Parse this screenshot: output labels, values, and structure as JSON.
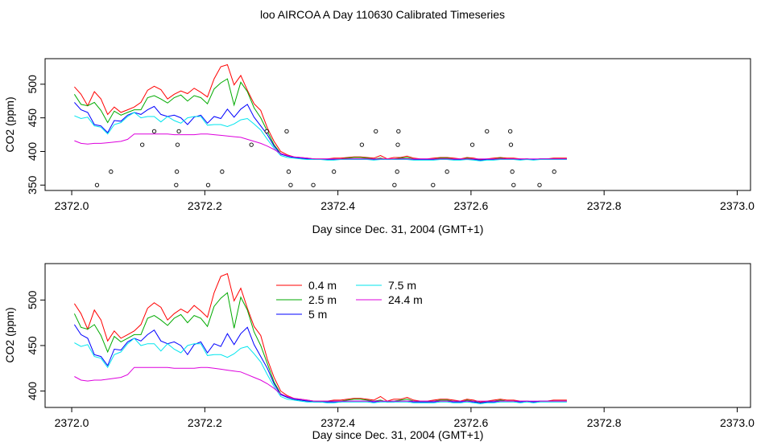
{
  "page": {
    "title": "loo AIRCOA A  Day 110630  Calibrated Timeseries"
  },
  "chart_data": [
    {
      "type": "line",
      "xlabel": "Day since Dec. 31, 2004 (GMT+1)",
      "ylabel": "CO2 (ppm)",
      "xlim": [
        2371.96,
        2373.02
      ],
      "ylim": [
        342,
        538
      ],
      "xticks": [
        "2372.0",
        "2372.2",
        "2372.4",
        "2372.6",
        "2372.8",
        "2373.0"
      ],
      "yticks": [
        "350",
        "400",
        "450",
        "500"
      ],
      "x": [
        2372.004,
        2372.014,
        2372.024,
        2372.034,
        2372.044,
        2372.054,
        2372.064,
        2372.074,
        2372.084,
        2372.094,
        2372.104,
        2372.114,
        2372.124,
        2372.134,
        2372.144,
        2372.154,
        2372.164,
        2372.174,
        2372.184,
        2372.194,
        2372.204,
        2372.214,
        2372.224,
        2372.234,
        2372.244,
        2372.254,
        2372.264,
        2372.274,
        2372.284,
        2372.294,
        2372.304,
        2372.314,
        2372.324,
        2372.334,
        2372.344,
        2372.354,
        2372.364,
        2372.374,
        2372.384,
        2372.394,
        2372.404,
        2372.414,
        2372.424,
        2372.434,
        2372.444,
        2372.454,
        2372.464,
        2372.474,
        2372.484,
        2372.494,
        2372.504,
        2372.514,
        2372.524,
        2372.534,
        2372.544,
        2372.554,
        2372.564,
        2372.574,
        2372.584,
        2372.594,
        2372.604,
        2372.614,
        2372.624,
        2372.634,
        2372.644,
        2372.654,
        2372.664,
        2372.674,
        2372.684,
        2372.694,
        2372.704,
        2372.714,
        2372.724,
        2372.734,
        2372.744
      ],
      "series": [
        {
          "name": "0.4 m",
          "color": "#ff0000",
          "values": [
            496,
            485,
            468,
            489,
            478,
            455,
            466,
            458,
            462,
            466,
            473,
            491,
            497,
            492,
            478,
            485,
            490,
            486,
            494,
            488,
            481,
            508,
            526,
            529,
            499,
            513,
            491,
            471,
            461,
            435,
            415,
            400,
            395,
            392,
            391,
            390,
            389,
            389,
            389,
            390,
            390,
            391,
            392,
            392,
            391,
            390,
            394,
            389,
            391,
            391,
            393,
            390,
            389,
            389,
            390,
            391,
            391,
            390,
            389,
            391,
            390,
            388,
            389,
            390,
            391,
            390,
            390,
            389,
            389,
            388,
            389,
            389,
            390,
            390,
            390
          ]
        },
        {
          "name": "2.5 m",
          "color": "#00aa00",
          "values": [
            485,
            470,
            468,
            473,
            461,
            443,
            460,
            454,
            458,
            462,
            462,
            480,
            483,
            478,
            472,
            480,
            484,
            475,
            483,
            480,
            471,
            493,
            502,
            508,
            469,
            503,
            489,
            465,
            450,
            430,
            410,
            397,
            393,
            391,
            390,
            389,
            389,
            388,
            388,
            389,
            389,
            390,
            391,
            391,
            390,
            389,
            390,
            388,
            389,
            390,
            391,
            389,
            388,
            388,
            389,
            390,
            390,
            389,
            388,
            390,
            389,
            387,
            388,
            389,
            390,
            389,
            389,
            388,
            389,
            388,
            389,
            389,
            389,
            389,
            389
          ]
        },
        {
          "name": "5 m",
          "color": "#0000ff",
          "values": [
            473,
            462,
            458,
            440,
            438,
            428,
            446,
            445,
            454,
            458,
            455,
            462,
            467,
            455,
            452,
            454,
            450,
            440,
            451,
            454,
            442,
            452,
            449,
            463,
            451,
            463,
            470,
            451,
            438,
            425,
            408,
            396,
            393,
            391,
            390,
            389,
            388,
            388,
            388,
            388,
            388,
            389,
            389,
            389,
            389,
            388,
            389,
            388,
            388,
            389,
            389,
            388,
            388,
            388,
            388,
            389,
            389,
            388,
            388,
            389,
            388,
            387,
            388,
            388,
            389,
            389,
            389,
            388,
            389,
            388,
            389,
            389,
            389,
            389,
            389
          ]
        },
        {
          "name": "7.5 m",
          "color": "#00e5ee",
          "values": [
            453,
            449,
            451,
            438,
            436,
            426,
            440,
            443,
            452,
            458,
            450,
            452,
            452,
            444,
            452,
            446,
            442,
            450,
            452,
            452,
            439,
            440,
            440,
            437,
            441,
            447,
            449,
            441,
            432,
            418,
            405,
            394,
            391,
            390,
            389,
            388,
            388,
            388,
            387,
            387,
            388,
            388,
            388,
            388,
            388,
            387,
            388,
            388,
            388,
            388,
            388,
            387,
            387,
            387,
            387,
            388,
            388,
            387,
            387,
            388,
            387,
            386,
            387,
            387,
            388,
            388,
            388,
            387,
            388,
            387,
            388,
            388,
            388,
            388,
            388
          ]
        },
        {
          "name": "24.4 m",
          "color": "#dd00dd",
          "values": [
            416,
            412,
            411,
            412,
            412,
            413,
            414,
            415,
            418,
            426,
            426,
            426,
            426,
            426,
            426,
            425,
            425,
            425,
            425,
            426,
            426,
            425,
            424,
            423,
            422,
            421,
            418,
            415,
            412,
            408,
            403,
            397,
            394,
            392,
            391,
            390,
            389,
            389,
            389,
            389,
            389,
            389,
            389,
            389,
            389,
            389,
            389,
            389,
            389,
            389,
            389,
            389,
            389,
            389,
            389,
            389,
            389,
            389,
            389,
            389,
            389,
            389,
            389,
            389,
            389,
            389,
            389,
            389,
            389,
            389,
            389,
            389,
            389,
            389,
            389
          ]
        }
      ],
      "points": {
        "x": [
          2372.038,
          2372.059,
          2372.106,
          2372.124,
          2372.157,
          2372.158,
          2372.159,
          2372.161,
          2372.205,
          2372.226,
          2372.27,
          2372.293,
          2372.323,
          2372.326,
          2372.329,
          2372.363,
          2372.394,
          2372.436,
          2372.457,
          2372.485,
          2372.489,
          2372.49,
          2372.491,
          2372.543,
          2372.564,
          2372.602,
          2372.624,
          2372.659,
          2372.66,
          2372.662,
          2372.664,
          2372.703,
          2372.725
        ],
        "y": [
          350,
          370,
          410,
          430,
          350,
          370,
          410,
          430,
          350,
          370,
          410,
          430,
          430,
          370,
          350,
          350,
          370,
          410,
          430,
          350,
          370,
          410,
          430,
          350,
          370,
          410,
          430,
          430,
          410,
          370,
          350,
          350,
          370
        ]
      }
    },
    {
      "type": "line",
      "xlabel": "Day since Dec. 31, 2004 (GMT+1)",
      "ylabel": "CO2 (ppm)",
      "xlim": [
        2371.96,
        2373.02
      ],
      "ylim": [
        382,
        540
      ],
      "xticks": [
        "2372.0",
        "2372.2",
        "2372.4",
        "2372.6",
        "2372.8",
        "2373.0"
      ],
      "yticks": [
        "400",
        "450",
        "500"
      ],
      "legend": {
        "placement": "top-center",
        "entries": [
          {
            "label": "0.4 m",
            "color": "#ff0000"
          },
          {
            "label": "2.5 m",
            "color": "#00aa00"
          },
          {
            "label": "5 m",
            "color": "#0000ff"
          },
          {
            "label": "7.5 m",
            "color": "#00e5ee"
          },
          {
            "label": "24.4 m",
            "color": "#dd00dd"
          }
        ]
      },
      "series_ref": "same as chart 0"
    }
  ]
}
